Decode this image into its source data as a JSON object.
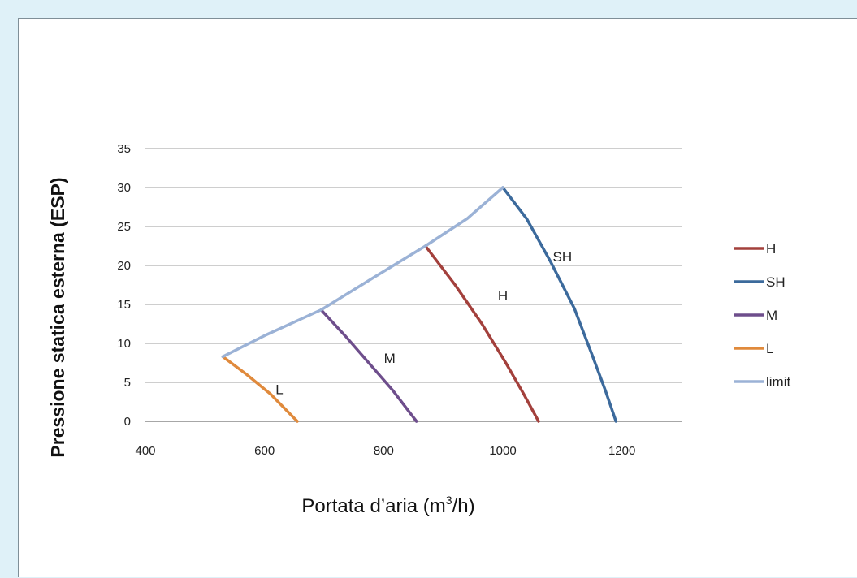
{
  "chart_data": {
    "type": "line",
    "title": "",
    "xlabel_main": "Portata d’aria (m",
    "xlabel_sup": "3",
    "xlabel_tail": "/h)",
    "ylabel": "Pressione statica esterna (ESP)",
    "xlim": [
      400,
      1300
    ],
    "ylim": [
      0,
      35
    ],
    "xticks": [
      "400",
      "600",
      "800",
      "1000",
      "1200"
    ],
    "yticks": [
      "0",
      "5",
      "10",
      "15",
      "20",
      "25",
      "30",
      "35"
    ],
    "grid": "horizontal",
    "legend_position": "right",
    "series": [
      {
        "name": "H",
        "color": "#a3403c",
        "label": "H",
        "points": [
          [
            870,
            22.5
          ],
          [
            920,
            17.5
          ],
          [
            965,
            12.5
          ],
          [
            1005,
            7.5
          ],
          [
            1035,
            3.5
          ],
          [
            1060,
            0
          ]
        ]
      },
      {
        "name": "SH",
        "color": "#3c6a9c",
        "label": "SH",
        "points": [
          [
            1000,
            30
          ],
          [
            1040,
            26
          ],
          [
            1080,
            20.5
          ],
          [
            1120,
            14.5
          ],
          [
            1150,
            8.5
          ],
          [
            1172,
            4
          ],
          [
            1190,
            0
          ]
        ]
      },
      {
        "name": "M",
        "color": "#6e4e8c",
        "label": "M",
        "points": [
          [
            695,
            14.3
          ],
          [
            735,
            11
          ],
          [
            775,
            7.5
          ],
          [
            815,
            4
          ],
          [
            855,
            0
          ]
        ]
      },
      {
        "name": "L",
        "color": "#e08a3c",
        "label": "L",
        "points": [
          [
            530,
            8.3
          ],
          [
            570,
            6
          ],
          [
            610,
            3.5
          ],
          [
            655,
            0
          ]
        ]
      },
      {
        "name": "limit",
        "color": "#9bb2d6",
        "label": "",
        "points": [
          [
            530,
            8.3
          ],
          [
            600,
            11
          ],
          [
            695,
            14.3
          ],
          [
            780,
            18.3
          ],
          [
            870,
            22.5
          ],
          [
            940,
            26
          ],
          [
            1000,
            30
          ]
        ]
      }
    ]
  }
}
